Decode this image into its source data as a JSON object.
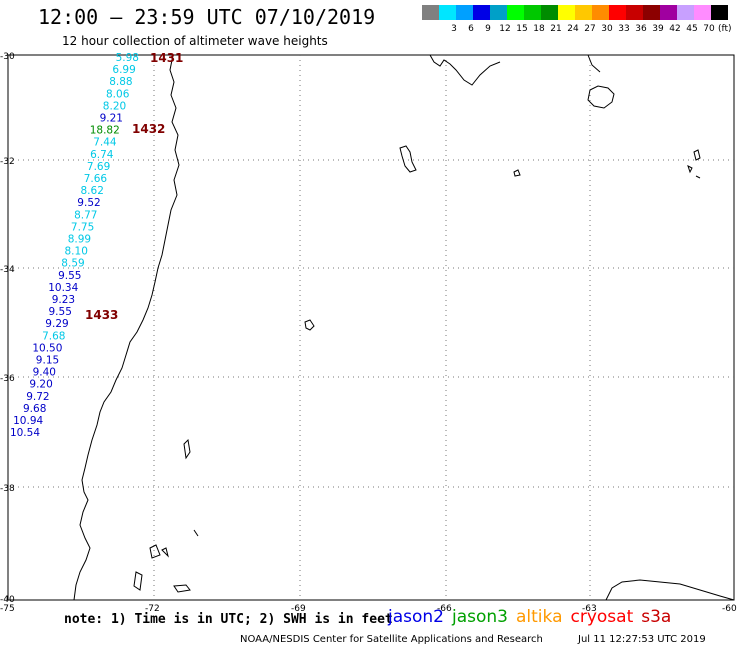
{
  "header": {
    "title": "12:00 – 23:59 UTC 07/10/2019",
    "subtitle": "12 hour collection of altimeter wave heights"
  },
  "colorbar": {
    "unit": "(ft)",
    "bins": [
      {
        "color": "#808080",
        "label": ""
      },
      {
        "color": "#00e6ff",
        "label": "3"
      },
      {
        "color": "#00a0ff",
        "label": "6"
      },
      {
        "color": "#0000e6",
        "label": "9"
      },
      {
        "color": "#00a0c8",
        "label": "12"
      },
      {
        "color": "#00ff00",
        "label": "15"
      },
      {
        "color": "#00c800",
        "label": "18"
      },
      {
        "color": "#008c00",
        "label": "21"
      },
      {
        "color": "#ffff00",
        "label": "24"
      },
      {
        "color": "#ffc800",
        "label": "27"
      },
      {
        "color": "#ff8c00",
        "label": "30"
      },
      {
        "color": "#ff0000",
        "label": "33"
      },
      {
        "color": "#c80000",
        "label": "36"
      },
      {
        "color": "#8c0000",
        "label": "39"
      },
      {
        "color": "#a000a0",
        "label": "42"
      },
      {
        "color": "#c8a0ff",
        "label": "45"
      },
      {
        "color": "#ff8cff",
        "label": "70"
      },
      {
        "color": "#000000",
        "label": ""
      }
    ]
  },
  "axes": {
    "lat_labels": [
      "-30",
      "-32",
      "-34",
      "-36",
      "-38",
      "-40"
    ],
    "lon_labels": [
      "-75",
      "-72",
      "-69",
      "-66",
      "-63",
      "-60"
    ]
  },
  "pass_labels": [
    {
      "text": "1431",
      "color": "#800000"
    },
    {
      "text": "1432",
      "color": "#800000"
    },
    {
      "text": "1433",
      "color": "#800000"
    }
  ],
  "wave_heights": [
    {
      "value": "5.98",
      "color": "#00c8e6"
    },
    {
      "value": "6.99",
      "color": "#00c8e6"
    },
    {
      "value": "8.88",
      "color": "#00c8e6"
    },
    {
      "value": "8.06",
      "color": "#00c8e6"
    },
    {
      "value": "8.20",
      "color": "#00c8e6"
    },
    {
      "value": "9.21",
      "color": "#0000c8"
    },
    {
      "value": "18.82",
      "color": "#008c00"
    },
    {
      "value": "7.44",
      "color": "#00c8e6"
    },
    {
      "value": "6.74",
      "color": "#00c8e6"
    },
    {
      "value": "7.69",
      "color": "#00c8e6"
    },
    {
      "value": "7.66",
      "color": "#00c8e6"
    },
    {
      "value": "8.62",
      "color": "#00c8e6"
    },
    {
      "value": "9.52",
      "color": "#0000c8"
    },
    {
      "value": "8.77",
      "color": "#00c8e6"
    },
    {
      "value": "7.75",
      "color": "#00c8e6"
    },
    {
      "value": "8.99",
      "color": "#00c8e6"
    },
    {
      "value": "8.10",
      "color": "#00c8e6"
    },
    {
      "value": "8.59",
      "color": "#00c8e6"
    },
    {
      "value": "9.55",
      "color": "#0000c8"
    },
    {
      "value": "10.34",
      "color": "#0000c8"
    },
    {
      "value": "9.23",
      "color": "#0000c8"
    },
    {
      "value": "9.55",
      "color": "#0000c8"
    },
    {
      "value": "9.29",
      "color": "#0000c8"
    },
    {
      "value": "7.68",
      "color": "#00c8e6"
    },
    {
      "value": "10.50",
      "color": "#0000c8"
    },
    {
      "value": "9.15",
      "color": "#0000c8"
    },
    {
      "value": "9.40",
      "color": "#0000c8"
    },
    {
      "value": "9.20",
      "color": "#0000c8"
    },
    {
      "value": "9.72",
      "color": "#0000c8"
    },
    {
      "value": "9.68",
      "color": "#0000c8"
    },
    {
      "value": "10.94",
      "color": "#0000c8"
    },
    {
      "value": "10.54",
      "color": "#0000c8"
    }
  ],
  "footer": {
    "note": "note: 1) Time is in UTC; 2) SWH is in feet",
    "legend": [
      {
        "name": "jason2",
        "color": "#0000e6"
      },
      {
        "name": "jason3",
        "color": "#00a000"
      },
      {
        "name": "altika",
        "color": "#ff9900"
      },
      {
        "name": "cryosat",
        "color": "#ff0000"
      },
      {
        "name": "s3a",
        "color": "#c80000"
      }
    ],
    "credit": "NOAA/NESDIS Center for Satellite Applications and Research",
    "timestamp": "Jul 11 12:27:53 UTC 2019"
  }
}
